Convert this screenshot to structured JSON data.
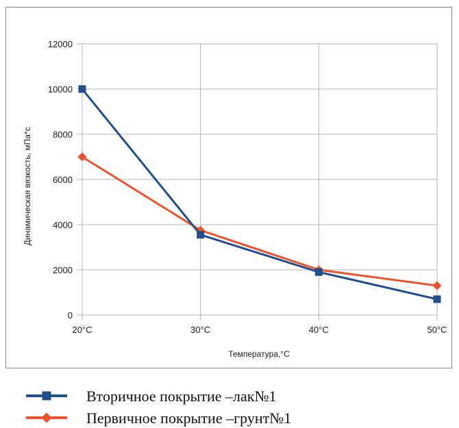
{
  "chart_data": {
    "type": "line",
    "title": "",
    "xlabel": "Температура,°С",
    "ylabel": "Динамическая вязкость, мПа*с",
    "categories": [
      "20°С",
      "30°С",
      "40°С",
      "50°С"
    ],
    "ylim": [
      0,
      12000
    ],
    "yticks": [
      "0",
      "2000",
      "4000",
      "6000",
      "8000",
      "10000",
      "12000"
    ],
    "grid": true,
    "legend_position": "bottom",
    "series": [
      {
        "name": "Вторичное покрытие –лак№1",
        "values": [
          10000,
          3550,
          1900,
          700
        ],
        "color": "#1f4e8c",
        "marker": "square"
      },
      {
        "name": "Первичное покрытие –грунт№1",
        "values": [
          7000,
          3750,
          2000,
          1300
        ],
        "color": "#f0502a",
        "marker": "diamond"
      }
    ]
  }
}
